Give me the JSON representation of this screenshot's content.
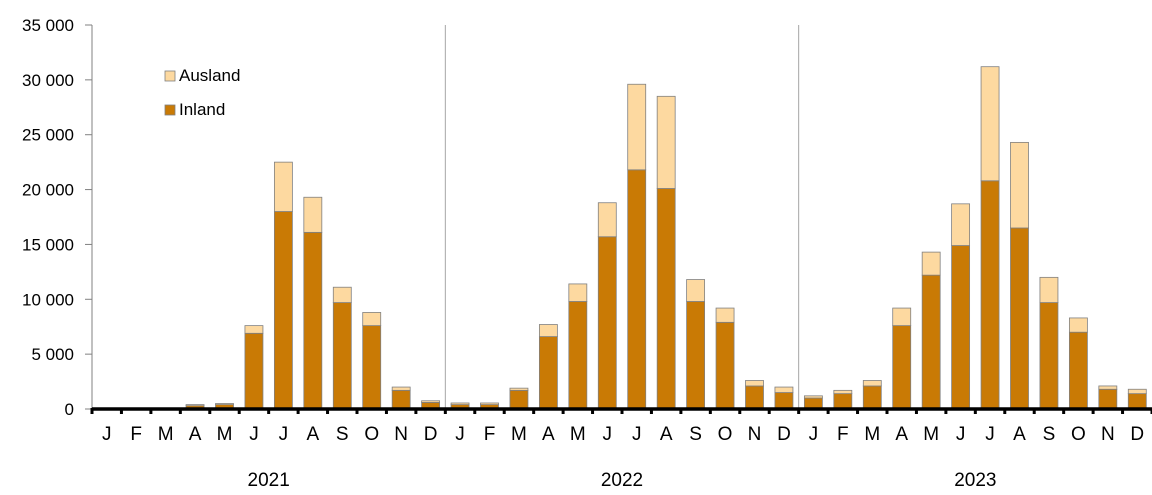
{
  "chart_data": {
    "type": "bar",
    "stacked": true,
    "title": "",
    "xlabel": "",
    "ylabel": "",
    "ylim": [
      0,
      35000
    ],
    "y_ticks": [
      0,
      5000,
      10000,
      15000,
      20000,
      25000,
      30000,
      35000
    ],
    "y_tick_labels": [
      "0",
      "5 000",
      "10 000",
      "15 000",
      "20 000",
      "25 000",
      "30 000",
      "35 000"
    ],
    "grid": false,
    "legend_position": "top-left",
    "groups": [
      "2021",
      "2022",
      "2023"
    ],
    "months": [
      "J",
      "F",
      "M",
      "A",
      "M",
      "J",
      "J",
      "A",
      "S",
      "O",
      "N",
      "D"
    ],
    "series": [
      {
        "name": "Inland",
        "color": "#c97a05",
        "values": [
          0,
          0,
          50,
          300,
          400,
          6900,
          18000,
          16100,
          9700,
          7600,
          1700,
          600,
          400,
          400,
          1700,
          6600,
          9800,
          15700,
          21800,
          20100,
          9800,
          7900,
          2100,
          1500,
          1000,
          1400,
          2100,
          7600,
          12200,
          14900,
          20800,
          16500,
          9700,
          7000,
          1800,
          1400
        ]
      },
      {
        "name": "Ausland",
        "color": "#fdd9a0",
        "values": [
          0,
          0,
          50,
          100,
          100,
          700,
          4500,
          3200,
          1400,
          1200,
          300,
          150,
          150,
          150,
          200,
          1100,
          1600,
          3100,
          7800,
          8400,
          2000,
          1300,
          500,
          500,
          200,
          300,
          500,
          1600,
          2100,
          3800,
          10400,
          7800,
          2300,
          1300,
          300,
          400
        ]
      }
    ]
  }
}
